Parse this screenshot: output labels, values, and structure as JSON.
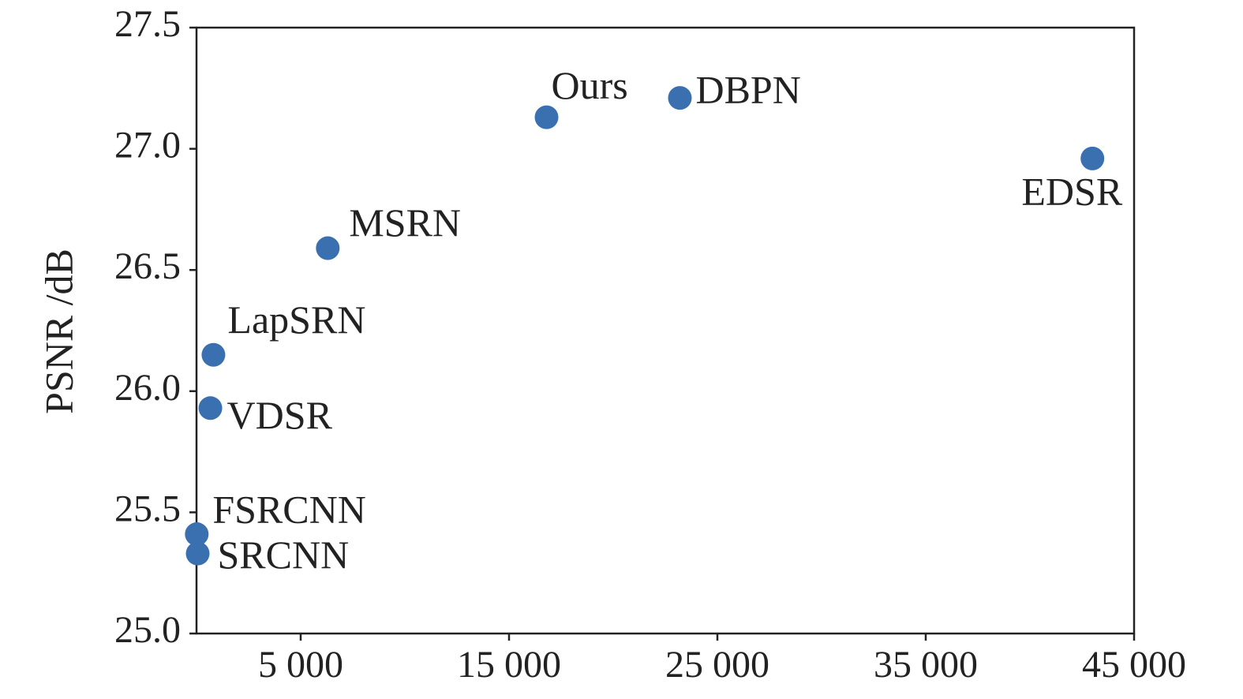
{
  "chart_data": {
    "type": "scatter",
    "ylabel": "PSNR /dB",
    "labels": [
      "SRCNN",
      "FSRCNN",
      "VDSR",
      "LapSRN",
      "MSRN",
      "Ours",
      "DBPN",
      "EDSR"
    ],
    "x": [
      57,
      12,
      665,
      812,
      6300,
      16800,
      23200,
      43000
    ],
    "values": [
      25.33,
      25.41,
      25.93,
      26.15,
      26.59,
      27.13,
      27.21,
      26.96
    ],
    "color": "#3a6fb0",
    "xlim": [
      0,
      45000
    ],
    "xticks": [
      {
        "value": 5000,
        "label": "5 000"
      },
      {
        "value": 15000,
        "label": "15 000"
      },
      {
        "value": 25000,
        "label": "25 000"
      },
      {
        "value": 35000,
        "label": "35 000"
      },
      {
        "value": 45000,
        "label": "45 000"
      }
    ],
    "ylim": [
      25,
      27.5
    ],
    "yticks": [
      {
        "value": 25,
        "label": "25.0"
      },
      25.5,
      {
        "value": 26,
        "label": "26.0"
      },
      26.5,
      {
        "value": 27,
        "label": "27.0"
      },
      27.5
    ]
  }
}
